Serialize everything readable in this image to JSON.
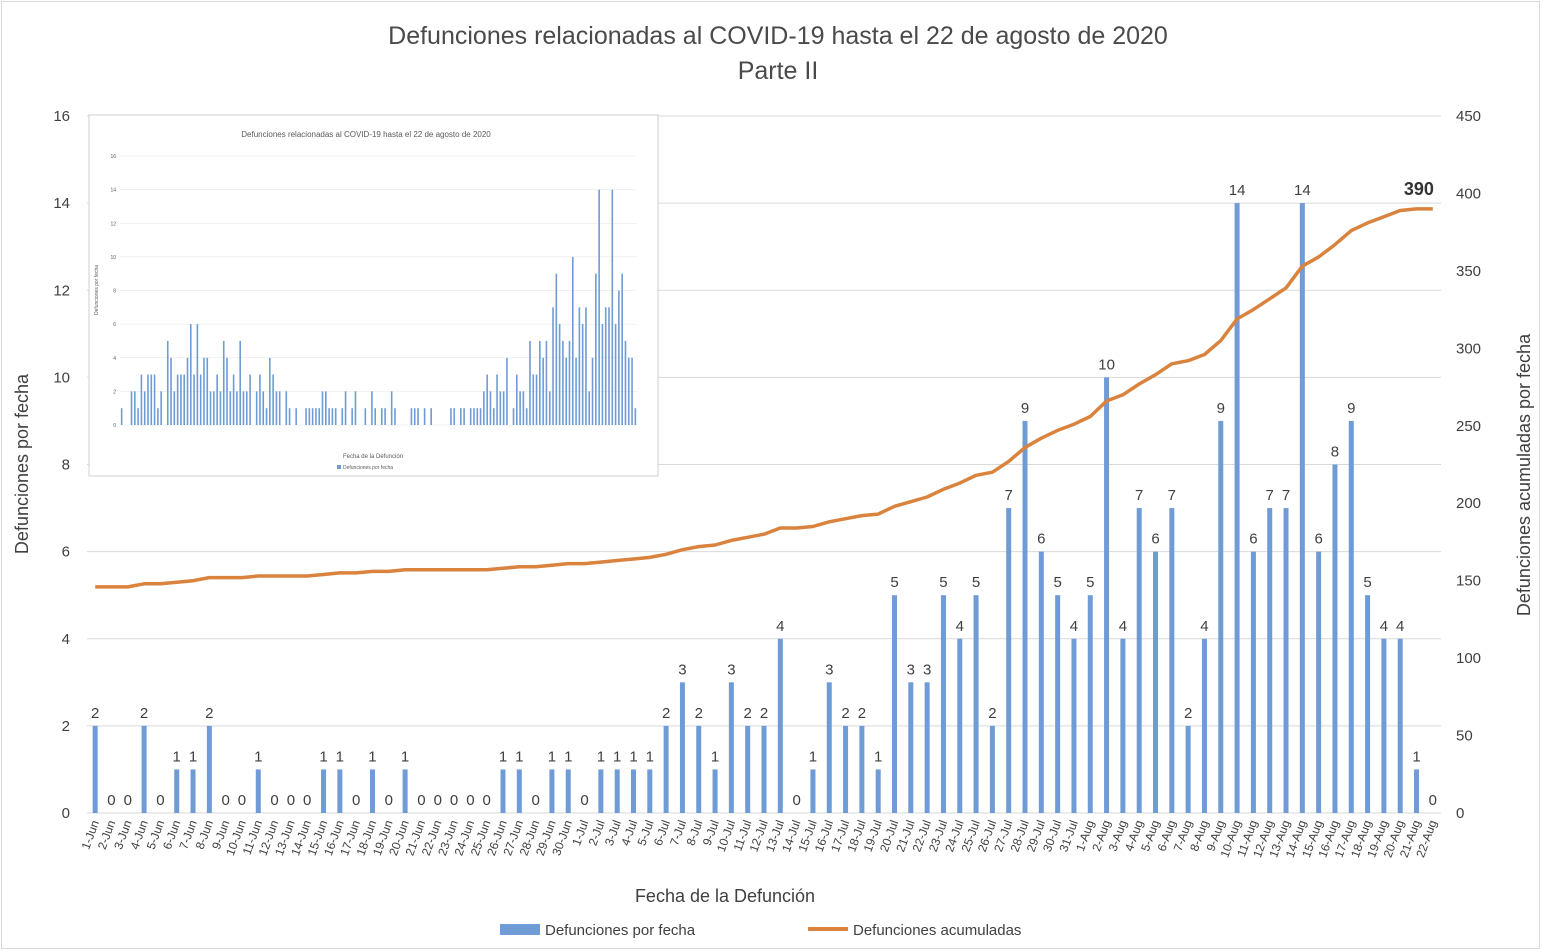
{
  "chart_data": [
    {
      "type": "bar+line",
      "title": "Defunciones relacionadas al COVID-19 hasta el 22 de agosto de 2020",
      "subtitle": "Parte II",
      "xlabel": "Fecha de la Defunción",
      "ylabel": "Defunciones por fecha",
      "y2label": "Defunciones acumuladas por fecha",
      "ylim": [
        0,
        16
      ],
      "y_ticks": [
        0,
        2,
        4,
        6,
        8,
        10,
        12,
        14,
        16
      ],
      "y2lim": [
        0,
        450
      ],
      "y2_ticks": [
        0,
        50,
        100,
        150,
        200,
        250,
        300,
        350,
        400,
        450
      ],
      "categories": [
        "1-Jun",
        "2-Jun",
        "3-Jun",
        "4-Jun",
        "5-Jun",
        "6-Jun",
        "7-Jun",
        "8-Jun",
        "9-Jun",
        "10-Jun",
        "11-Jun",
        "12-Jun",
        "13-Jun",
        "14-Jun",
        "15-Jun",
        "16-Jun",
        "17-Jun",
        "18-Jun",
        "19-Jun",
        "20-Jun",
        "21-Jun",
        "22-Jun",
        "23-Jun",
        "24-Jun",
        "25-Jun",
        "26-Jun",
        "27-Jun",
        "28-Jun",
        "29-Jun",
        "30-Jun",
        "1-Jul",
        "2-Jul",
        "3-Jul",
        "4-Jul",
        "5-Jul",
        "6-Jul",
        "7-Jul",
        "8-Jul",
        "9-Jul",
        "10-Jul",
        "11-Jul",
        "12-Jul",
        "13-Jul",
        "14-Jul",
        "15-Jul",
        "16-Jul",
        "17-Jul",
        "18-Jul",
        "19-Jul",
        "20-Jul",
        "21-Jul",
        "22-Jul",
        "23-Jul",
        "24-Jul",
        "25-Jul",
        "26-Jul",
        "27-Jul",
        "28-Jul",
        "29-Jul",
        "30-Jul",
        "31-Jul",
        "1-Aug",
        "2-Aug",
        "3-Aug",
        "4-Aug",
        "5-Aug",
        "6-Aug",
        "7-Aug",
        "8-Aug",
        "9-Aug",
        "10-Aug",
        "11-Aug",
        "12-Aug",
        "13-Aug",
        "14-Aug",
        "15-Aug",
        "16-Aug",
        "17-Aug",
        "18-Aug",
        "19-Aug",
        "20-Aug",
        "21-Aug",
        "22-Aug"
      ],
      "series": [
        {
          "name": "Defunciones por fecha",
          "type": "bar",
          "axis": "left",
          "color": "#6f9bd6",
          "values": [
            2,
            0,
            0,
            2,
            0,
            1,
            1,
            2,
            0,
            0,
            1,
            0,
            0,
            0,
            1,
            1,
            0,
            1,
            0,
            1,
            0,
            0,
            0,
            0,
            0,
            1,
            1,
            0,
            1,
            1,
            0,
            1,
            1,
            1,
            1,
            2,
            3,
            2,
            1,
            3,
            2,
            2,
            4,
            0,
            1,
            3,
            2,
            2,
            1,
            5,
            3,
            3,
            5,
            4,
            5,
            2,
            7,
            9,
            6,
            5,
            4,
            5,
            10,
            4,
            7,
            6,
            7,
            2,
            4,
            9,
            14,
            6,
            7,
            7,
            14,
            6,
            8,
            9,
            5,
            4,
            4,
            1,
            0
          ]
        },
        {
          "name": "Defunciones acumuladas",
          "type": "line",
          "axis": "right",
          "color": "#d9833e",
          "values": [
            146,
            146,
            146,
            148,
            148,
            149,
            150,
            152,
            152,
            152,
            153,
            153,
            153,
            153,
            154,
            155,
            155,
            156,
            156,
            157,
            157,
            157,
            157,
            157,
            157,
            158,
            159,
            159,
            160,
            161,
            161,
            162,
            163,
            164,
            165,
            167,
            170,
            172,
            173,
            176,
            178,
            180,
            184,
            184,
            185,
            188,
            190,
            192,
            193,
            198,
            201,
            204,
            209,
            213,
            218,
            220,
            227,
            236,
            242,
            247,
            251,
            256,
            266,
            270,
            277,
            283,
            290,
            292,
            296,
            305,
            319,
            325,
            332,
            339,
            353,
            359,
            367,
            376,
            381,
            385,
            389,
            390,
            390
          ],
          "annotation": "390"
        }
      ],
      "legend_position": "bottom"
    },
    {
      "type": "bar",
      "inset": true,
      "title": "Defunciones relacionadas al COVID-19 hasta el 22 de agosto de 2020",
      "xlabel": "Fecha de la Defunción",
      "ylabel": "Defunciones por fecha",
      "legend": "Defunciones por fecha",
      "ylim": [
        0,
        16
      ],
      "y_ticks": [
        0,
        2,
        4,
        6,
        8,
        10,
        12,
        14,
        16
      ],
      "values": [
        1,
        0,
        0,
        2,
        2,
        1,
        3,
        2,
        3,
        3,
        3,
        1,
        2,
        0,
        5,
        4,
        2,
        3,
        3,
        3,
        4,
        6,
        3,
        6,
        3,
        4,
        4,
        2,
        2,
        3,
        2,
        5,
        4,
        2,
        3,
        2,
        5,
        2,
        2,
        3,
        0,
        2,
        3,
        2,
        1,
        4,
        3,
        2,
        2,
        0,
        2,
        1,
        0,
        1,
        0,
        0,
        1,
        1,
        1,
        1,
        1,
        2,
        2,
        1,
        1,
        1,
        0,
        1,
        2,
        0,
        1,
        2,
        0,
        0,
        1,
        0,
        2,
        1,
        0,
        1,
        1,
        0,
        2,
        1,
        0,
        0,
        0,
        0,
        1,
        1,
        1,
        0,
        1,
        0,
        1,
        0,
        0,
        0,
        0,
        0,
        1,
        1,
        0,
        1,
        1,
        0,
        1,
        1,
        1,
        1,
        2,
        3,
        2,
        1,
        3,
        2,
        2,
        4,
        0,
        1,
        3,
        2,
        2,
        1,
        5,
        3,
        3,
        5,
        4,
        5,
        2,
        7,
        9,
        6,
        5,
        4,
        5,
        10,
        4,
        7,
        6,
        7,
        2,
        4,
        9,
        14,
        6,
        7,
        7,
        14,
        6,
        8,
        9,
        5,
        4,
        4,
        1
      ]
    }
  ]
}
